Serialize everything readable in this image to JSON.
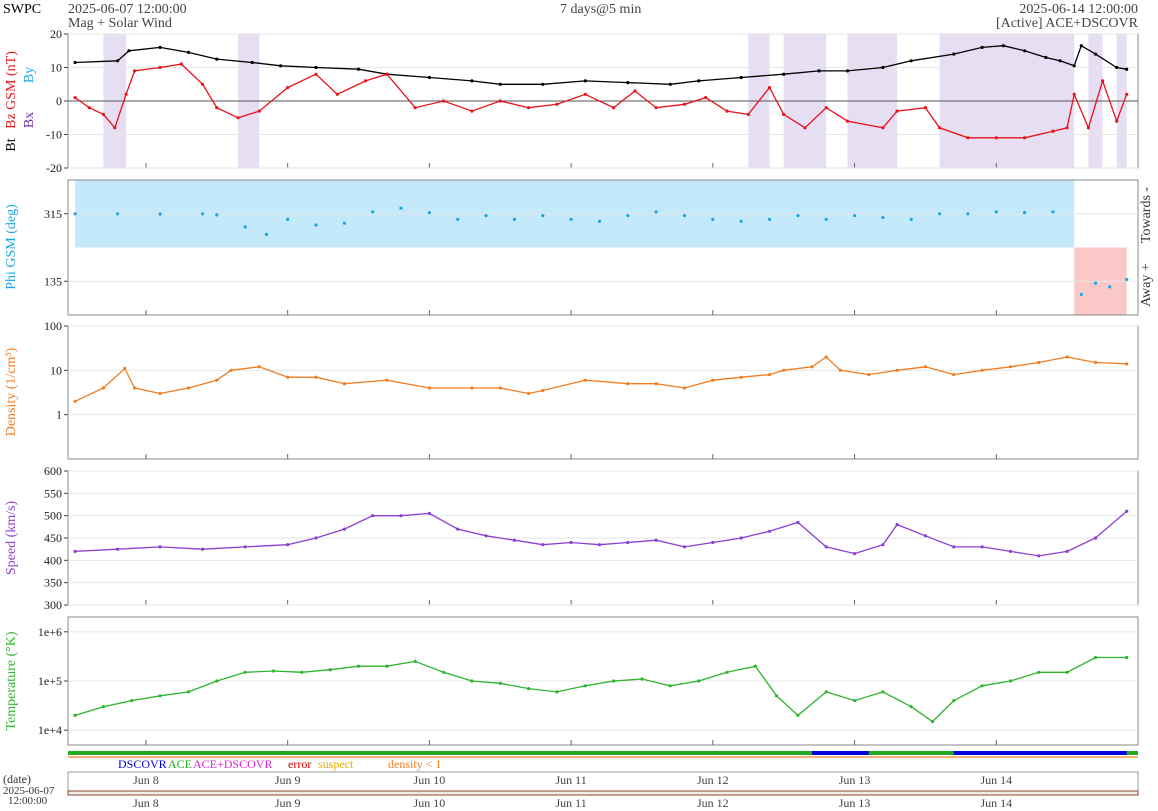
{
  "header": {
    "org": "SWPC",
    "start_time": "2025-06-07 12:00:00",
    "subtitle": "Mag + Solar Wind",
    "span": "7 days@5 min",
    "end_time": "2025-06-14 12:00:00",
    "source": "[Active] ACE+DSCOVR"
  },
  "colors": {
    "bt": "#000000",
    "bz": "#e8131b",
    "bx": "#6e2ea8",
    "by": "#1aa6e0",
    "phi": "#1aa6e0",
    "phi_towards_fill": "#c3e9fa",
    "phi_away_fill": "#fbc8c8",
    "bz_fill": "#dcd0ee",
    "density": "#f07d22",
    "speed": "#8c3fcf",
    "temperature": "#2db52d",
    "dscovr": "#0000dd",
    "ace": "#22aa22",
    "ace_dscovr": "#dd22dd",
    "error": "#dd0000",
    "suspect": "#e5b000",
    "density_lt1": "#f07d22"
  },
  "chart_data": [
    {
      "id": "mag",
      "type": "line",
      "ylabel_parts": [
        "Bt",
        "Bz GSM (nT)"
      ],
      "extra_labels": [
        "Bx",
        "By"
      ],
      "ylim": [
        -20,
        20
      ],
      "yticks": [
        -20,
        -10,
        0,
        10,
        20
      ],
      "grid": true,
      "zero_line": true,
      "series": [
        {
          "name": "Bt",
          "color": "#000000",
          "points": [
            [
              0,
              11.5
            ],
            [
              0.3,
              12
            ],
            [
              0.38,
              15
            ],
            [
              0.6,
              16
            ],
            [
              0.8,
              14.5
            ],
            [
              1.0,
              12.5
            ],
            [
              1.25,
              11.5
            ],
            [
              1.45,
              10.5
            ],
            [
              1.7,
              10
            ],
            [
              2.0,
              9.5
            ],
            [
              2.2,
              8
            ],
            [
              2.5,
              7
            ],
            [
              2.8,
              6
            ],
            [
              3.0,
              5
            ],
            [
              3.3,
              5
            ],
            [
              3.6,
              6
            ],
            [
              3.9,
              5.5
            ],
            [
              4.2,
              5
            ],
            [
              4.4,
              6
            ],
            [
              4.7,
              7
            ],
            [
              5.0,
              8
            ],
            [
              5.25,
              9
            ],
            [
              5.45,
              9
            ],
            [
              5.7,
              10
            ],
            [
              5.9,
              12
            ],
            [
              6.2,
              14
            ],
            [
              6.4,
              16
            ],
            [
              6.55,
              16.5
            ],
            [
              6.7,
              15
            ],
            [
              6.85,
              13
            ],
            [
              6.95,
              12
            ],
            [
              7.05,
              10.5
            ],
            [
              7.1,
              16.5
            ],
            [
              7.2,
              14
            ],
            [
              7.35,
              10
            ],
            [
              7.42,
              9.5
            ]
          ]
        },
        {
          "name": "Bz",
          "color": "#e8131b",
          "points": [
            [
              0,
              1
            ],
            [
              0.1,
              -2
            ],
            [
              0.2,
              -4
            ],
            [
              0.28,
              -8
            ],
            [
              0.36,
              2
            ],
            [
              0.42,
              9
            ],
            [
              0.6,
              10
            ],
            [
              0.75,
              11
            ],
            [
              0.9,
              5
            ],
            [
              1.0,
              -2
            ],
            [
              1.15,
              -5
            ],
            [
              1.3,
              -3
            ],
            [
              1.5,
              4
            ],
            [
              1.7,
              8
            ],
            [
              1.85,
              2
            ],
            [
              2.05,
              6
            ],
            [
              2.2,
              8
            ],
            [
              2.4,
              -2
            ],
            [
              2.6,
              0
            ],
            [
              2.8,
              -3
            ],
            [
              3.0,
              0
            ],
            [
              3.2,
              -2
            ],
            [
              3.4,
              -1
            ],
            [
              3.6,
              2
            ],
            [
              3.8,
              -2
            ],
            [
              3.95,
              3
            ],
            [
              4.1,
              -2
            ],
            [
              4.3,
              -1
            ],
            [
              4.45,
              1
            ],
            [
              4.6,
              -3
            ],
            [
              4.75,
              -4
            ],
            [
              4.9,
              4
            ],
            [
              5.0,
              -4
            ],
            [
              5.15,
              -8
            ],
            [
              5.3,
              -2
            ],
            [
              5.45,
              -6
            ],
            [
              5.7,
              -8
            ],
            [
              5.8,
              -3
            ],
            [
              6.0,
              -2
            ],
            [
              6.1,
              -8
            ],
            [
              6.3,
              -11
            ],
            [
              6.5,
              -11
            ],
            [
              6.7,
              -11
            ],
            [
              6.9,
              -9
            ],
            [
              7.0,
              -8
            ],
            [
              7.05,
              2
            ],
            [
              7.15,
              -8
            ],
            [
              7.25,
              6
            ],
            [
              7.35,
              -6
            ],
            [
              7.42,
              2
            ]
          ]
        }
      ]
    },
    {
      "id": "phi",
      "type": "scatter",
      "ylabel": "Phi GSM (deg)",
      "right_labels": [
        "Towards -",
        "Away +"
      ],
      "ylim": [
        45,
        405
      ],
      "yticks": [
        135,
        315
      ],
      "towards_spans": [
        [
          0,
          7.05
        ]
      ],
      "away_spans": [
        [
          7.05,
          7.42
        ]
      ],
      "points": [
        [
          0,
          315
        ],
        [
          0.3,
          315
        ],
        [
          0.6,
          314
        ],
        [
          0.9,
          315
        ],
        [
          1.0,
          312
        ],
        [
          1.2,
          280
        ],
        [
          1.35,
          260
        ],
        [
          1.5,
          300
        ],
        [
          1.7,
          285
        ],
        [
          1.9,
          290
        ],
        [
          2.1,
          320
        ],
        [
          2.3,
          330
        ],
        [
          2.5,
          318
        ],
        [
          2.7,
          300
        ],
        [
          2.9,
          310
        ],
        [
          3.1,
          300
        ],
        [
          3.3,
          310
        ],
        [
          3.5,
          300
        ],
        [
          3.7,
          295
        ],
        [
          3.9,
          310
        ],
        [
          4.1,
          320
        ],
        [
          4.3,
          310
        ],
        [
          4.5,
          300
        ],
        [
          4.7,
          295
        ],
        [
          4.9,
          300
        ],
        [
          5.1,
          310
        ],
        [
          5.3,
          300
        ],
        [
          5.5,
          310
        ],
        [
          5.7,
          305
        ],
        [
          5.9,
          300
        ],
        [
          6.1,
          315
        ],
        [
          6.3,
          315
        ],
        [
          6.5,
          320
        ],
        [
          6.7,
          318
        ],
        [
          6.9,
          320
        ],
        [
          7.1,
          100
        ],
        [
          7.2,
          130
        ],
        [
          7.3,
          120
        ],
        [
          7.42,
          140
        ]
      ]
    },
    {
      "id": "density",
      "type": "line",
      "ylabel": "Density (1/cm³)",
      "ylim_log": [
        0.1,
        100
      ],
      "yticks": [
        1,
        10,
        100
      ],
      "scale": "log",
      "series": [
        {
          "name": "Density",
          "color": "#f07d22",
          "points": [
            [
              0,
              2
            ],
            [
              0.2,
              4
            ],
            [
              0.35,
              11
            ],
            [
              0.42,
              4
            ],
            [
              0.6,
              3
            ],
            [
              0.8,
              4
            ],
            [
              1.0,
              6
            ],
            [
              1.1,
              10
            ],
            [
              1.3,
              12
            ],
            [
              1.5,
              7
            ],
            [
              1.7,
              7
            ],
            [
              1.9,
              5
            ],
            [
              2.2,
              6
            ],
            [
              2.5,
              4
            ],
            [
              2.8,
              4
            ],
            [
              3.0,
              4
            ],
            [
              3.2,
              3
            ],
            [
              3.3,
              3.5
            ],
            [
              3.6,
              6
            ],
            [
              3.9,
              5
            ],
            [
              4.1,
              5
            ],
            [
              4.3,
              4
            ],
            [
              4.5,
              6
            ],
            [
              4.7,
              7
            ],
            [
              4.9,
              8
            ],
            [
              5.0,
              10
            ],
            [
              5.2,
              12
            ],
            [
              5.3,
              20
            ],
            [
              5.4,
              10
            ],
            [
              5.6,
              8
            ],
            [
              5.8,
              10
            ],
            [
              6.0,
              12
            ],
            [
              6.2,
              8
            ],
            [
              6.4,
              10
            ],
            [
              6.6,
              12
            ],
            [
              6.8,
              15
            ],
            [
              7.0,
              20
            ],
            [
              7.2,
              15
            ],
            [
              7.42,
              14
            ]
          ]
        }
      ]
    },
    {
      "id": "speed",
      "type": "line",
      "ylabel": "Speed (km/s)",
      "ylim": [
        300,
        600
      ],
      "yticks": [
        300,
        350,
        400,
        450,
        500,
        550,
        600
      ],
      "series": [
        {
          "name": "Speed",
          "color": "#8c3fcf",
          "points": [
            [
              0,
              420
            ],
            [
              0.3,
              425
            ],
            [
              0.6,
              430
            ],
            [
              0.9,
              425
            ],
            [
              1.2,
              430
            ],
            [
              1.5,
              435
            ],
            [
              1.7,
              450
            ],
            [
              1.9,
              470
            ],
            [
              2.1,
              500
            ],
            [
              2.3,
              500
            ],
            [
              2.5,
              505
            ],
            [
              2.7,
              470
            ],
            [
              2.9,
              455
            ],
            [
              3.1,
              445
            ],
            [
              3.3,
              435
            ],
            [
              3.5,
              440
            ],
            [
              3.7,
              435
            ],
            [
              3.9,
              440
            ],
            [
              4.1,
              445
            ],
            [
              4.3,
              430
            ],
            [
              4.5,
              440
            ],
            [
              4.7,
              450
            ],
            [
              4.9,
              465
            ],
            [
              5.1,
              485
            ],
            [
              5.3,
              430
            ],
            [
              5.5,
              415
            ],
            [
              5.7,
              435
            ],
            [
              5.8,
              480
            ],
            [
              6.0,
              455
            ],
            [
              6.2,
              430
            ],
            [
              6.4,
              430
            ],
            [
              6.6,
              420
            ],
            [
              6.8,
              410
            ],
            [
              7.0,
              420
            ],
            [
              7.2,
              450
            ],
            [
              7.42,
              510
            ]
          ]
        }
      ]
    },
    {
      "id": "temperature",
      "type": "line",
      "ylabel": "Temperature (°K)",
      "ylim_log": [
        5000,
        2000000
      ],
      "ytick_labels": [
        "1e+4",
        "1e+5",
        "1e+6"
      ],
      "yticks": [
        10000,
        100000,
        1000000
      ],
      "scale": "log",
      "series": [
        {
          "name": "Temperature",
          "color": "#2db52d",
          "points": [
            [
              0,
              20000
            ],
            [
              0.2,
              30000
            ],
            [
              0.4,
              40000
            ],
            [
              0.6,
              50000
            ],
            [
              0.8,
              60000
            ],
            [
              1.0,
              100000
            ],
            [
              1.2,
              150000
            ],
            [
              1.4,
              160000
            ],
            [
              1.6,
              150000
            ],
            [
              1.8,
              170000
            ],
            [
              2.0,
              200000
            ],
            [
              2.2,
              200000
            ],
            [
              2.4,
              250000
            ],
            [
              2.6,
              150000
            ],
            [
              2.8,
              100000
            ],
            [
              3.0,
              90000
            ],
            [
              3.2,
              70000
            ],
            [
              3.4,
              60000
            ],
            [
              3.6,
              80000
            ],
            [
              3.8,
              100000
            ],
            [
              4.0,
              110000
            ],
            [
              4.2,
              80000
            ],
            [
              4.4,
              100000
            ],
            [
              4.6,
              150000
            ],
            [
              4.8,
              200000
            ],
            [
              4.95,
              50000
            ],
            [
              5.1,
              20000
            ],
            [
              5.3,
              60000
            ],
            [
              5.5,
              40000
            ],
            [
              5.7,
              60000
            ],
            [
              5.9,
              30000
            ],
            [
              6.05,
              15000
            ],
            [
              6.2,
              40000
            ],
            [
              6.4,
              80000
            ],
            [
              6.6,
              100000
            ],
            [
              6.8,
              150000
            ],
            [
              7.0,
              150000
            ],
            [
              7.2,
              300000
            ],
            [
              7.42,
              300000
            ]
          ]
        }
      ]
    }
  ],
  "source_bar": {
    "legend": [
      {
        "label": "DSCOVR",
        "color": "#0000dd"
      },
      {
        "label": "ACE",
        "color": "#22aa22"
      },
      {
        "label": "ACE+DSCOVR",
        "color": "#dd22dd"
      },
      {
        "label": "error",
        "color": "#dd0000"
      },
      {
        "label": "suspect",
        "color": "#e5b000"
      },
      {
        "label": "density < 1",
        "color": "#f07d22"
      }
    ],
    "dscovr_spans": [
      [
        5.2,
        5.6
      ],
      [
        6.2,
        7.42
      ]
    ]
  },
  "x_axis": {
    "labels": [
      "Jun 8",
      "Jun 9",
      "Jun 10",
      "Jun 11",
      "Jun 12",
      "Jun 13",
      "Jun 14"
    ],
    "corner_label": "(date)",
    "corner_date": "2025-06-07",
    "corner_time": "12:00:00"
  }
}
